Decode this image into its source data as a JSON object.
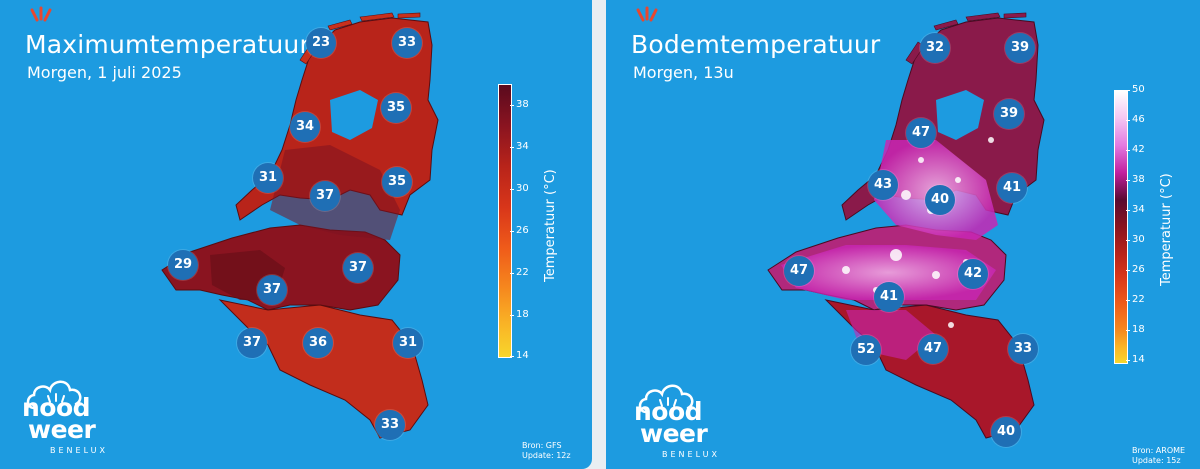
{
  "colors": {
    "background": "#1d9be0",
    "badge": "#1f6fb5",
    "spark": "#e8472f"
  },
  "left_map": {
    "title": "Maximumtemperatuur",
    "subtitle": "Morgen, 1 juli 2025",
    "colorbar": {
      "label": "Temperatuur (°C)",
      "ticks": [
        "38",
        "34",
        "30",
        "26",
        "22",
        "18",
        "14"
      ],
      "range": [
        14,
        40
      ]
    },
    "values": [
      "23",
      "33",
      "35",
      "34",
      "31",
      "37",
      "35",
      "29",
      "37",
      "37",
      "37",
      "36",
      "31",
      "33"
    ],
    "source": [
      "Bron: GFS",
      "Update: 12z"
    ]
  },
  "right_map": {
    "title": "Bodemtemperatuur",
    "subtitle": "Morgen, 13u",
    "colorbar": {
      "label": "Temperatuur (°C)",
      "ticks": [
        "50",
        "46",
        "42",
        "38",
        "34",
        "30",
        "26",
        "22",
        "18",
        "14"
      ],
      "range": [
        14,
        50
      ]
    },
    "values": [
      "32",
      "39",
      "47",
      "39",
      "43",
      "40",
      "41",
      "47",
      "42",
      "41",
      "52",
      "47",
      "33",
      "40"
    ],
    "source": [
      "Bron: AROME",
      "Update: 15z"
    ]
  },
  "logo": {
    "line1": "nood",
    "line2": "weer",
    "line3": "BENELUX"
  }
}
